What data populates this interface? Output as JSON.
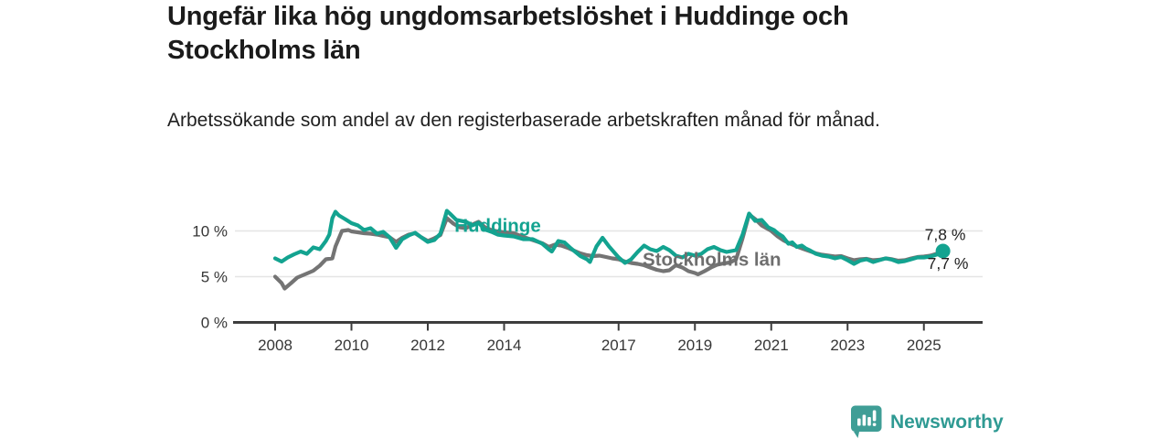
{
  "header": {
    "title": "Ungefär lika hög ungdomsarbetslöshet i Huddinge och Stockholms län",
    "subtitle": "Arbetssökande som andel av den registerbaserade arbetskraften månad för månad."
  },
  "footer": {
    "brand": "Newsworthy",
    "logo_icon": "newsworthy-speech-bubble-bar-chart-icon",
    "brand_color": "#2f9a93"
  },
  "colors": {
    "huddinge_teal": "#13a390",
    "stockholm_gray": "#747474",
    "gridline": "#e4e4e4",
    "axis": "#3d3d3d"
  },
  "chart_data": {
    "type": "line",
    "unit": "%",
    "grid": "horizontal",
    "x_axis": {
      "ticks": [
        {
          "value": 2008,
          "label": "2008"
        },
        {
          "value": 2010,
          "label": "2010"
        },
        {
          "value": 2012,
          "label": "2012"
        },
        {
          "value": 2014,
          "label": "2014"
        },
        {
          "value": 2017,
          "label": "2017"
        },
        {
          "value": 2019,
          "label": "2019"
        },
        {
          "value": 2021,
          "label": "2021"
        },
        {
          "value": 2023,
          "label": "2023"
        },
        {
          "value": 2025,
          "label": "2025"
        }
      ]
    },
    "y_axis": {
      "range": [
        0,
        12.5
      ],
      "ticks": [
        {
          "value": 0,
          "label": "0 %"
        },
        {
          "value": 5,
          "label": "5 %"
        },
        {
          "value": 10,
          "label": "10 %"
        }
      ]
    },
    "series": [
      {
        "name": "Huddinge",
        "color": "#13a390",
        "end_label": "7,8 %",
        "end_value": 7.8,
        "end_dot": true,
        "label_anchor": {
          "x": 2012.7,
          "y": 10.6
        },
        "points": [
          [
            2008.0,
            7.0
          ],
          [
            2008.17,
            6.65
          ],
          [
            2008.33,
            7.1
          ],
          [
            2008.5,
            7.45
          ],
          [
            2008.67,
            7.75
          ],
          [
            2008.83,
            7.5
          ],
          [
            2009.0,
            8.2
          ],
          [
            2009.17,
            8.0
          ],
          [
            2009.33,
            8.9
          ],
          [
            2009.42,
            9.6
          ],
          [
            2009.5,
            11.4
          ],
          [
            2009.58,
            12.1
          ],
          [
            2009.67,
            11.7
          ],
          [
            2009.83,
            11.3
          ],
          [
            2010.0,
            10.85
          ],
          [
            2010.17,
            10.6
          ],
          [
            2010.33,
            10.1
          ],
          [
            2010.5,
            10.3
          ],
          [
            2010.67,
            9.7
          ],
          [
            2010.83,
            9.9
          ],
          [
            2011.0,
            9.3
          ],
          [
            2011.17,
            8.15
          ],
          [
            2011.33,
            9.1
          ],
          [
            2011.5,
            9.5
          ],
          [
            2011.67,
            9.8
          ],
          [
            2011.83,
            9.3
          ],
          [
            2012.0,
            8.8
          ],
          [
            2012.17,
            9.0
          ],
          [
            2012.33,
            9.7
          ],
          [
            2012.42,
            11.0
          ],
          [
            2012.5,
            12.2
          ],
          [
            2012.58,
            11.9
          ],
          [
            2012.75,
            11.2
          ],
          [
            2013.0,
            11.0
          ],
          [
            2013.17,
            10.6
          ],
          [
            2013.33,
            10.9
          ],
          [
            2013.5,
            10.15
          ],
          [
            2013.67,
            9.9
          ],
          [
            2013.83,
            9.6
          ],
          [
            2014.0,
            9.5
          ],
          [
            2014.25,
            9.4
          ],
          [
            2014.5,
            9.1
          ],
          [
            2014.75,
            9.1
          ],
          [
            2015.0,
            8.6
          ],
          [
            2015.17,
            8.0
          ],
          [
            2015.25,
            7.75
          ],
          [
            2015.42,
            8.9
          ],
          [
            2015.58,
            8.75
          ],
          [
            2015.75,
            8.1
          ],
          [
            2016.0,
            7.25
          ],
          [
            2016.17,
            6.9
          ],
          [
            2016.25,
            6.6
          ],
          [
            2016.42,
            8.3
          ],
          [
            2016.58,
            9.25
          ],
          [
            2016.75,
            8.3
          ],
          [
            2017.0,
            7.1
          ],
          [
            2017.17,
            6.5
          ],
          [
            2017.33,
            6.9
          ],
          [
            2017.5,
            7.7
          ],
          [
            2017.67,
            8.4
          ],
          [
            2017.83,
            8.0
          ],
          [
            2018.0,
            7.8
          ],
          [
            2018.17,
            8.25
          ],
          [
            2018.33,
            7.9
          ],
          [
            2018.5,
            7.3
          ],
          [
            2018.67,
            7.1
          ],
          [
            2018.83,
            7.5
          ],
          [
            2019.0,
            7.3
          ],
          [
            2019.17,
            7.5
          ],
          [
            2019.33,
            8.0
          ],
          [
            2019.5,
            8.25
          ],
          [
            2019.67,
            7.9
          ],
          [
            2019.83,
            7.7
          ],
          [
            2020.08,
            7.9
          ],
          [
            2020.25,
            9.6
          ],
          [
            2020.42,
            11.9
          ],
          [
            2020.5,
            11.5
          ],
          [
            2020.58,
            11.1
          ],
          [
            2020.75,
            11.2
          ],
          [
            2020.92,
            10.4
          ],
          [
            2021.07,
            10.1
          ],
          [
            2021.17,
            9.75
          ],
          [
            2021.3,
            9.4
          ],
          [
            2021.45,
            8.6
          ],
          [
            2021.55,
            8.75
          ],
          [
            2021.67,
            8.25
          ],
          [
            2021.8,
            8.4
          ],
          [
            2021.9,
            8.1
          ],
          [
            2022.0,
            7.9
          ],
          [
            2022.17,
            7.5
          ],
          [
            2022.33,
            7.3
          ],
          [
            2022.5,
            7.2
          ],
          [
            2022.67,
            7.0
          ],
          [
            2022.83,
            7.15
          ],
          [
            2023.0,
            6.8
          ],
          [
            2023.17,
            6.4
          ],
          [
            2023.33,
            6.75
          ],
          [
            2023.5,
            6.9
          ],
          [
            2023.67,
            6.6
          ],
          [
            2023.83,
            6.8
          ],
          [
            2024.0,
            7.0
          ],
          [
            2024.17,
            6.85
          ],
          [
            2024.33,
            6.6
          ],
          [
            2024.5,
            6.7
          ],
          [
            2024.67,
            6.9
          ],
          [
            2024.83,
            7.1
          ],
          [
            2025.0,
            7.1
          ],
          [
            2025.17,
            7.2
          ],
          [
            2025.33,
            7.4
          ],
          [
            2025.5,
            7.8
          ]
        ]
      },
      {
        "name": "Stockholms län",
        "color": "#747474",
        "end_label": "7,7 %",
        "end_value": 7.7,
        "end_dot": false,
        "label_anchor": {
          "x": 2017.63,
          "y": 6.9
        },
        "points": [
          [
            2008.0,
            5.0
          ],
          [
            2008.17,
            4.3
          ],
          [
            2008.25,
            3.7
          ],
          [
            2008.42,
            4.3
          ],
          [
            2008.58,
            4.9
          ],
          [
            2008.75,
            5.2
          ],
          [
            2008.92,
            5.5
          ],
          [
            2009.0,
            5.65
          ],
          [
            2009.17,
            6.2
          ],
          [
            2009.33,
            6.9
          ],
          [
            2009.5,
            7.0
          ],
          [
            2009.58,
            8.3
          ],
          [
            2009.75,
            10.0
          ],
          [
            2009.92,
            10.1
          ],
          [
            2010.0,
            9.95
          ],
          [
            2010.17,
            9.85
          ],
          [
            2010.33,
            9.75
          ],
          [
            2010.5,
            9.7
          ],
          [
            2010.67,
            9.6
          ],
          [
            2010.83,
            9.45
          ],
          [
            2011.0,
            9.3
          ],
          [
            2011.17,
            8.8
          ],
          [
            2011.33,
            9.25
          ],
          [
            2011.5,
            9.6
          ],
          [
            2011.67,
            9.75
          ],
          [
            2011.83,
            9.3
          ],
          [
            2012.0,
            8.9
          ],
          [
            2012.17,
            9.2
          ],
          [
            2012.33,
            9.55
          ],
          [
            2012.5,
            11.4
          ],
          [
            2012.67,
            10.8
          ],
          [
            2012.83,
            10.4
          ],
          [
            2013.0,
            10.3
          ],
          [
            2013.17,
            10.7
          ],
          [
            2013.33,
            11.0
          ],
          [
            2013.5,
            10.4
          ],
          [
            2013.67,
            10.1
          ],
          [
            2013.83,
            9.95
          ],
          [
            2014.0,
            9.85
          ],
          [
            2014.25,
            9.75
          ],
          [
            2014.5,
            9.35
          ],
          [
            2014.75,
            9.0
          ],
          [
            2015.0,
            8.65
          ],
          [
            2015.17,
            8.25
          ],
          [
            2015.33,
            8.5
          ],
          [
            2015.5,
            8.4
          ],
          [
            2015.67,
            8.15
          ],
          [
            2015.83,
            7.85
          ],
          [
            2016.0,
            7.55
          ],
          [
            2016.17,
            7.35
          ],
          [
            2016.33,
            7.25
          ],
          [
            2016.5,
            7.3
          ],
          [
            2016.67,
            7.15
          ],
          [
            2016.83,
            7.0
          ],
          [
            2017.0,
            6.9
          ],
          [
            2017.17,
            6.65
          ],
          [
            2017.33,
            6.5
          ],
          [
            2017.5,
            6.4
          ],
          [
            2017.67,
            6.25
          ],
          [
            2017.83,
            6.0
          ],
          [
            2018.0,
            5.75
          ],
          [
            2018.17,
            5.6
          ],
          [
            2018.33,
            5.7
          ],
          [
            2018.5,
            6.25
          ],
          [
            2018.67,
            6.0
          ],
          [
            2018.83,
            5.6
          ],
          [
            2019.0,
            5.4
          ],
          [
            2019.08,
            5.25
          ],
          [
            2019.25,
            5.6
          ],
          [
            2019.42,
            6.0
          ],
          [
            2019.58,
            6.3
          ],
          [
            2019.75,
            6.45
          ],
          [
            2019.92,
            6.55
          ],
          [
            2020.08,
            6.9
          ],
          [
            2020.25,
            9.2
          ],
          [
            2020.42,
            11.8
          ],
          [
            2020.58,
            11.3
          ],
          [
            2020.75,
            10.6
          ],
          [
            2020.92,
            10.2
          ],
          [
            2021.0,
            10.0
          ],
          [
            2021.17,
            9.4
          ],
          [
            2021.33,
            8.95
          ],
          [
            2021.5,
            8.6
          ],
          [
            2021.67,
            8.3
          ],
          [
            2021.83,
            8.05
          ],
          [
            2022.0,
            7.8
          ],
          [
            2022.17,
            7.55
          ],
          [
            2022.33,
            7.4
          ],
          [
            2022.5,
            7.3
          ],
          [
            2022.67,
            7.2
          ],
          [
            2022.83,
            7.25
          ],
          [
            2023.0,
            7.0
          ],
          [
            2023.17,
            6.8
          ],
          [
            2023.33,
            6.9
          ],
          [
            2023.5,
            6.95
          ],
          [
            2023.67,
            6.8
          ],
          [
            2023.83,
            6.85
          ],
          [
            2024.0,
            7.0
          ],
          [
            2024.17,
            6.9
          ],
          [
            2024.33,
            6.75
          ],
          [
            2024.5,
            6.8
          ],
          [
            2024.67,
            7.0
          ],
          [
            2024.83,
            7.15
          ],
          [
            2025.0,
            7.2
          ],
          [
            2025.17,
            7.3
          ],
          [
            2025.33,
            7.5
          ],
          [
            2025.5,
            7.7
          ]
        ]
      }
    ]
  }
}
